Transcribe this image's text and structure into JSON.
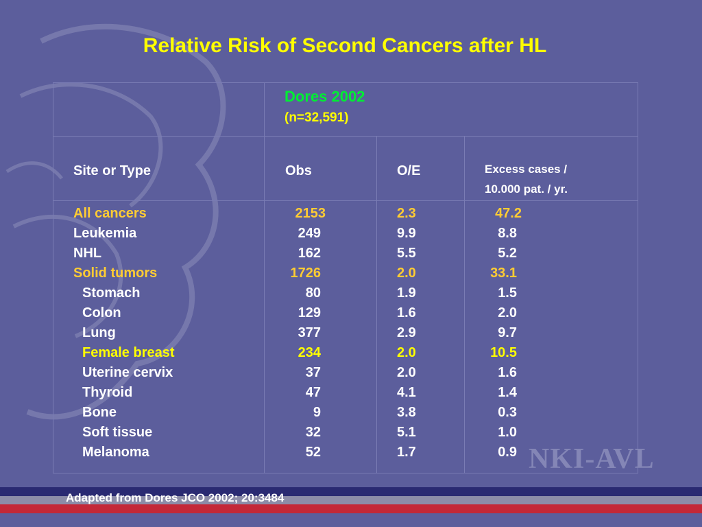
{
  "title": "Relative Risk of Second Cancers after HL",
  "study": {
    "name": "Dores 2002",
    "n": "(n=32,591)"
  },
  "headers": {
    "site": "Site or Type",
    "obs": "Obs",
    "oe": "O/E",
    "excess_line1": "Excess cases /",
    "excess_line2": "10.000 pat. / yr."
  },
  "rows": [
    {
      "site": "All cancers",
      "obs": "2153",
      "oe": "2.3",
      "excess": "47.2"
    },
    {
      "site": "Leukemia",
      "obs": "249",
      "oe": "9.9",
      "excess": "8.8"
    },
    {
      "site": "NHL",
      "obs": "162",
      "oe": "5.5",
      "excess": "5.2"
    },
    {
      "site": "Solid tumors",
      "obs": "1726",
      "oe": "2.0",
      "excess": "33.1"
    },
    {
      "site": "Stomach",
      "obs": "80",
      "oe": "1.9",
      "excess": "1.5"
    },
    {
      "site": "Colon",
      "obs": "129",
      "oe": "1.6",
      "excess": "2.0"
    },
    {
      "site": "Lung",
      "obs": "377",
      "oe": "2.9",
      "excess": "9.7"
    },
    {
      "site": "Female breast",
      "obs": "234",
      "oe": "2.0",
      "excess": "10.5"
    },
    {
      "site": "Uterine cervix",
      "obs": "37",
      "oe": "2.0",
      "excess": "1.6"
    },
    {
      "site": "Thyroid",
      "obs": "47",
      "oe": "4.1",
      "excess": "1.4"
    },
    {
      "site": "Bone",
      "obs": "9",
      "oe": "3.8",
      "excess": "0.3"
    },
    {
      "site": "Soft tissue",
      "obs": "32",
      "oe": "5.1",
      "excess": "1.0"
    },
    {
      "site": "Melanoma",
      "obs": "52",
      "oe": "1.7",
      "excess": "0.9"
    }
  ],
  "footnote": "Adapted from Dores JCO 2002; 20:3484",
  "logo": "NKI-AVL",
  "colors": {
    "background": "#5c5e9c",
    "title": "#ffff00",
    "study_name": "#00ee33",
    "highlight": "#ffcc33",
    "bar_top": "#2a2a72",
    "bar_mid": "#8c8ca8",
    "bar_bottom": "#c42838"
  }
}
